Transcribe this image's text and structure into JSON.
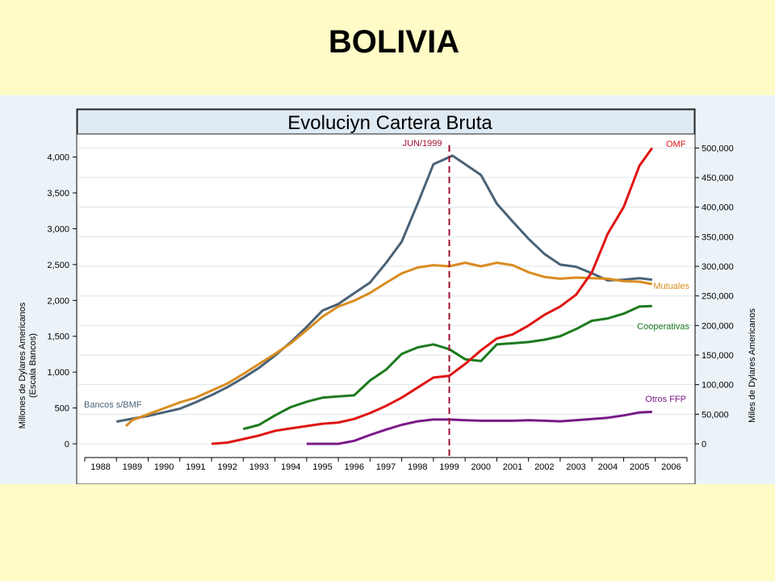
{
  "slide": {
    "title": "BOLIVIA"
  },
  "colors": {
    "slide_background": "#fffbc6",
    "chart_background": "#ecf3f8",
    "plot_background": "#ffffff",
    "title_bar": "#dfeaf3",
    "bancos": "#4a6277",
    "mutuales": "#d98c20",
    "cooperativas": "#1d7a1d",
    "omf": "#e01414",
    "otros_ffp": "#7a1a88",
    "marker_line": "#a01030"
  },
  "chart_data": {
    "type": "line",
    "title": "Evoluciyn Cartera Bruta",
    "left_axis": {
      "label_line1": "Millones de Dylares Americanos",
      "label_line2": "(Escala Bancos)",
      "ticks": [
        0,
        500,
        1000,
        1500,
        2000,
        2500,
        3000,
        3500,
        4000
      ],
      "tick_labels": [
        "0",
        "500",
        "1,000",
        "1,500",
        "2,000",
        "2,500",
        "3,000",
        "3,500",
        "4,000"
      ],
      "range": [
        0,
        4300
      ]
    },
    "right_axis": {
      "label": "Miles de Dylares Americanos",
      "ticks": [
        0,
        50000,
        100000,
        150000,
        200000,
        250000,
        300000,
        350000,
        400000,
        450000,
        500000
      ],
      "tick_labels": [
        "0",
        "50,000",
        "100,000",
        "150,000",
        "200,000",
        "250,000",
        "300,000",
        "350,000",
        "400,000",
        "450,000",
        "500,000"
      ],
      "range": [
        0,
        521000
      ]
    },
    "x_axis": {
      "categories": [
        "1988",
        "1989",
        "1990",
        "1991",
        "1992",
        "1993",
        "1994",
        "1995",
        "1996",
        "1997",
        "1998",
        "1999",
        "2000",
        "2001",
        "2002",
        "2003",
        "2004",
        "2005",
        "2006"
      ]
    },
    "annotation": {
      "label": "JUN/1999",
      "x": 1999.5
    },
    "grid": true,
    "series": [
      {
        "name": "Bancos s/BMF",
        "axis": "left",
        "key": "bancos",
        "points": [
          [
            1989.0,
            310
          ],
          [
            1989.5,
            350
          ],
          [
            1990.0,
            390
          ],
          [
            1990.5,
            440
          ],
          [
            1991.0,
            490
          ],
          [
            1991.5,
            580
          ],
          [
            1992.0,
            680
          ],
          [
            1992.5,
            790
          ],
          [
            1993.0,
            920
          ],
          [
            1993.5,
            1060
          ],
          [
            1994.0,
            1230
          ],
          [
            1994.5,
            1420
          ],
          [
            1995.0,
            1630
          ],
          [
            1995.5,
            1860
          ],
          [
            1996.0,
            1950
          ],
          [
            1996.5,
            2100
          ],
          [
            1997.0,
            2250
          ],
          [
            1997.5,
            2520
          ],
          [
            1998.0,
            2820
          ],
          [
            1998.5,
            3350
          ],
          [
            1999.0,
            3900
          ],
          [
            1999.3,
            3960
          ],
          [
            1999.6,
            4020
          ],
          [
            2000.0,
            3900
          ],
          [
            2000.5,
            3750
          ],
          [
            2001.0,
            3350
          ],
          [
            2001.5,
            3100
          ],
          [
            2002.0,
            2860
          ],
          [
            2002.5,
            2650
          ],
          [
            2003.0,
            2500
          ],
          [
            2003.5,
            2470
          ],
          [
            2004.0,
            2380
          ],
          [
            2004.5,
            2280
          ],
          [
            2005.0,
            2290
          ],
          [
            2005.5,
            2310
          ],
          [
            2005.9,
            2290
          ]
        ]
      },
      {
        "name": "Mutuales",
        "axis": "right",
        "key": "mutuales",
        "points": [
          [
            1989.3,
            30000
          ],
          [
            1989.5,
            40000
          ],
          [
            1990.0,
            50000
          ],
          [
            1990.5,
            60000
          ],
          [
            1991.0,
            70000
          ],
          [
            1991.5,
            78000
          ],
          [
            1992.0,
            90000
          ],
          [
            1992.5,
            102000
          ],
          [
            1993.0,
            118000
          ],
          [
            1993.5,
            135000
          ],
          [
            1994.0,
            152000
          ],
          [
            1994.5,
            170000
          ],
          [
            1995.0,
            192000
          ],
          [
            1995.5,
            215000
          ],
          [
            1996.0,
            232000
          ],
          [
            1996.5,
            242000
          ],
          [
            1997.0,
            255000
          ],
          [
            1997.5,
            272000
          ],
          [
            1998.0,
            288000
          ],
          [
            1998.5,
            298000
          ],
          [
            1999.0,
            302000
          ],
          [
            1999.5,
            300000
          ],
          [
            2000.0,
            306000
          ],
          [
            2000.5,
            300000
          ],
          [
            2001.0,
            306000
          ],
          [
            2001.5,
            302000
          ],
          [
            2002.0,
            290000
          ],
          [
            2002.5,
            282000
          ],
          [
            2003.0,
            279000
          ],
          [
            2003.5,
            281000
          ],
          [
            2004.0,
            280000
          ],
          [
            2004.5,
            279000
          ],
          [
            2005.0,
            275000
          ],
          [
            2005.5,
            274000
          ],
          [
            2005.9,
            270000
          ]
        ]
      },
      {
        "name": "Cooperativas",
        "axis": "right",
        "key": "cooperativas",
        "points": [
          [
            1993.0,
            25000
          ],
          [
            1993.5,
            32000
          ],
          [
            1994.0,
            48000
          ],
          [
            1994.5,
            62000
          ],
          [
            1995.0,
            71000
          ],
          [
            1995.5,
            78000
          ],
          [
            1996.0,
            80000
          ],
          [
            1996.5,
            82000
          ],
          [
            1997.0,
            107000
          ],
          [
            1997.5,
            125000
          ],
          [
            1998.0,
            152000
          ],
          [
            1998.5,
            163000
          ],
          [
            1999.0,
            168000
          ],
          [
            1999.5,
            160000
          ],
          [
            2000.0,
            143000
          ],
          [
            2000.5,
            140000
          ],
          [
            2001.0,
            168000
          ],
          [
            2001.5,
            170000
          ],
          [
            2002.0,
            172000
          ],
          [
            2002.5,
            176000
          ],
          [
            2003.0,
            182000
          ],
          [
            2003.5,
            194000
          ],
          [
            2004.0,
            208000
          ],
          [
            2004.5,
            212000
          ],
          [
            2005.0,
            220000
          ],
          [
            2005.5,
            232000
          ],
          [
            2005.9,
            233000
          ]
        ]
      },
      {
        "name": "OMF",
        "axis": "right",
        "key": "omf",
        "points": [
          [
            1992.0,
            0
          ],
          [
            1992.5,
            2000
          ],
          [
            1993.0,
            8000
          ],
          [
            1993.5,
            14000
          ],
          [
            1994.0,
            22000
          ],
          [
            1994.5,
            26000
          ],
          [
            1995.0,
            30000
          ],
          [
            1995.5,
            34000
          ],
          [
            1996.0,
            36000
          ],
          [
            1996.5,
            42000
          ],
          [
            1997.0,
            52000
          ],
          [
            1997.5,
            64000
          ],
          [
            1998.0,
            78000
          ],
          [
            1998.5,
            95000
          ],
          [
            1999.0,
            112000
          ],
          [
            1999.5,
            115000
          ],
          [
            2000.0,
            135000
          ],
          [
            2000.5,
            158000
          ],
          [
            2001.0,
            178000
          ],
          [
            2001.5,
            185000
          ],
          [
            2002.0,
            200000
          ],
          [
            2002.5,
            218000
          ],
          [
            2003.0,
            232000
          ],
          [
            2003.5,
            252000
          ],
          [
            2004.0,
            290000
          ],
          [
            2004.5,
            355000
          ],
          [
            2005.0,
            400000
          ],
          [
            2005.5,
            470000
          ],
          [
            2005.9,
            500000
          ]
        ]
      },
      {
        "name": "Otros FFP",
        "axis": "right",
        "key": "otros_ffp",
        "points": [
          [
            1995.0,
            0
          ],
          [
            1995.5,
            0
          ],
          [
            1996.0,
            0
          ],
          [
            1996.5,
            5000
          ],
          [
            1997.0,
            15000
          ],
          [
            1997.5,
            24000
          ],
          [
            1998.0,
            32000
          ],
          [
            1998.5,
            38000
          ],
          [
            1999.0,
            41000
          ],
          [
            1999.5,
            41000
          ],
          [
            2000.0,
            40000
          ],
          [
            2000.5,
            39000
          ],
          [
            2001.0,
            39000
          ],
          [
            2001.5,
            39000
          ],
          [
            2002.0,
            40000
          ],
          [
            2002.5,
            39000
          ],
          [
            2003.0,
            38000
          ],
          [
            2003.5,
            40000
          ],
          [
            2004.0,
            42000
          ],
          [
            2004.5,
            44000
          ],
          [
            2005.0,
            48000
          ],
          [
            2005.5,
            53000
          ],
          [
            2005.9,
            54000
          ]
        ]
      }
    ]
  }
}
